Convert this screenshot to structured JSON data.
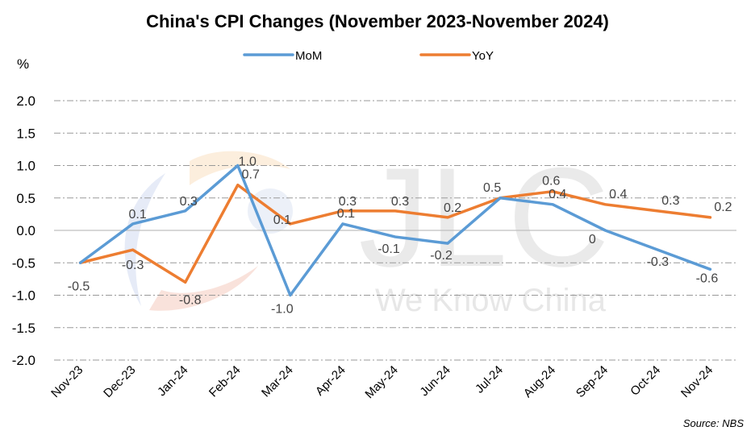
{
  "title": "China's CPI Changes (November 2023-November 2024)",
  "unit_label": "%",
  "source": "Source: NBS",
  "watermark": {
    "main": "JLC",
    "tagline": "We Know China"
  },
  "colors": {
    "mom": "#5B9BD5",
    "yoy": "#ED7D31",
    "grid": "#999999",
    "axis": "#BFBFBF"
  },
  "chart_data": {
    "type": "line",
    "title": "China's CPI Changes (November 2023-November 2024)",
    "xlabel": "",
    "ylabel": "%",
    "ylim": [
      -2.0,
      2.0
    ],
    "yticks": [
      "2.0",
      "1.5",
      "1.0",
      "0.5",
      "0.0",
      "-0.5",
      "-1.0",
      "-1.5",
      "-2.0"
    ],
    "ytick_values": [
      2.0,
      1.5,
      1.0,
      0.5,
      0.0,
      -0.5,
      -1.0,
      -1.5,
      -2.0
    ],
    "grid": true,
    "legend_position": "top-center",
    "categories": [
      "Nov-23",
      "Dec-23",
      "Jan-24",
      "Feb-24",
      "Mar-24",
      "Apr-24",
      "May-24",
      "Jun-24",
      "Jul-24",
      "Aug-24",
      "Sep-24",
      "Oct-24",
      "Nov-24"
    ],
    "series": [
      {
        "name": "MoM",
        "values": [
          -0.5,
          0.1,
          0.3,
          1.0,
          -1.0,
          0.1,
          -0.1,
          -0.2,
          0.5,
          0.4,
          0.0,
          -0.3,
          -0.6
        ],
        "labels": [
          "",
          "0.1",
          "0.3",
          "1.0",
          "-1.0",
          "0.1",
          "-0.1",
          "-0.2",
          "0.5",
          "0.4",
          "0",
          "-0.3",
          "-0.6"
        ]
      },
      {
        "name": "YoY",
        "values": [
          -0.5,
          -0.3,
          -0.8,
          0.7,
          0.1,
          0.3,
          0.3,
          0.2,
          0.5,
          0.6,
          0.4,
          0.3,
          0.2
        ],
        "labels": [
          "-0.5",
          "-0.3",
          "-0.8",
          "0.7",
          "0.1",
          "0.3",
          "0.3",
          "0.2",
          "",
          "0.6",
          "0.4",
          "0.3",
          "0.2"
        ]
      }
    ]
  }
}
